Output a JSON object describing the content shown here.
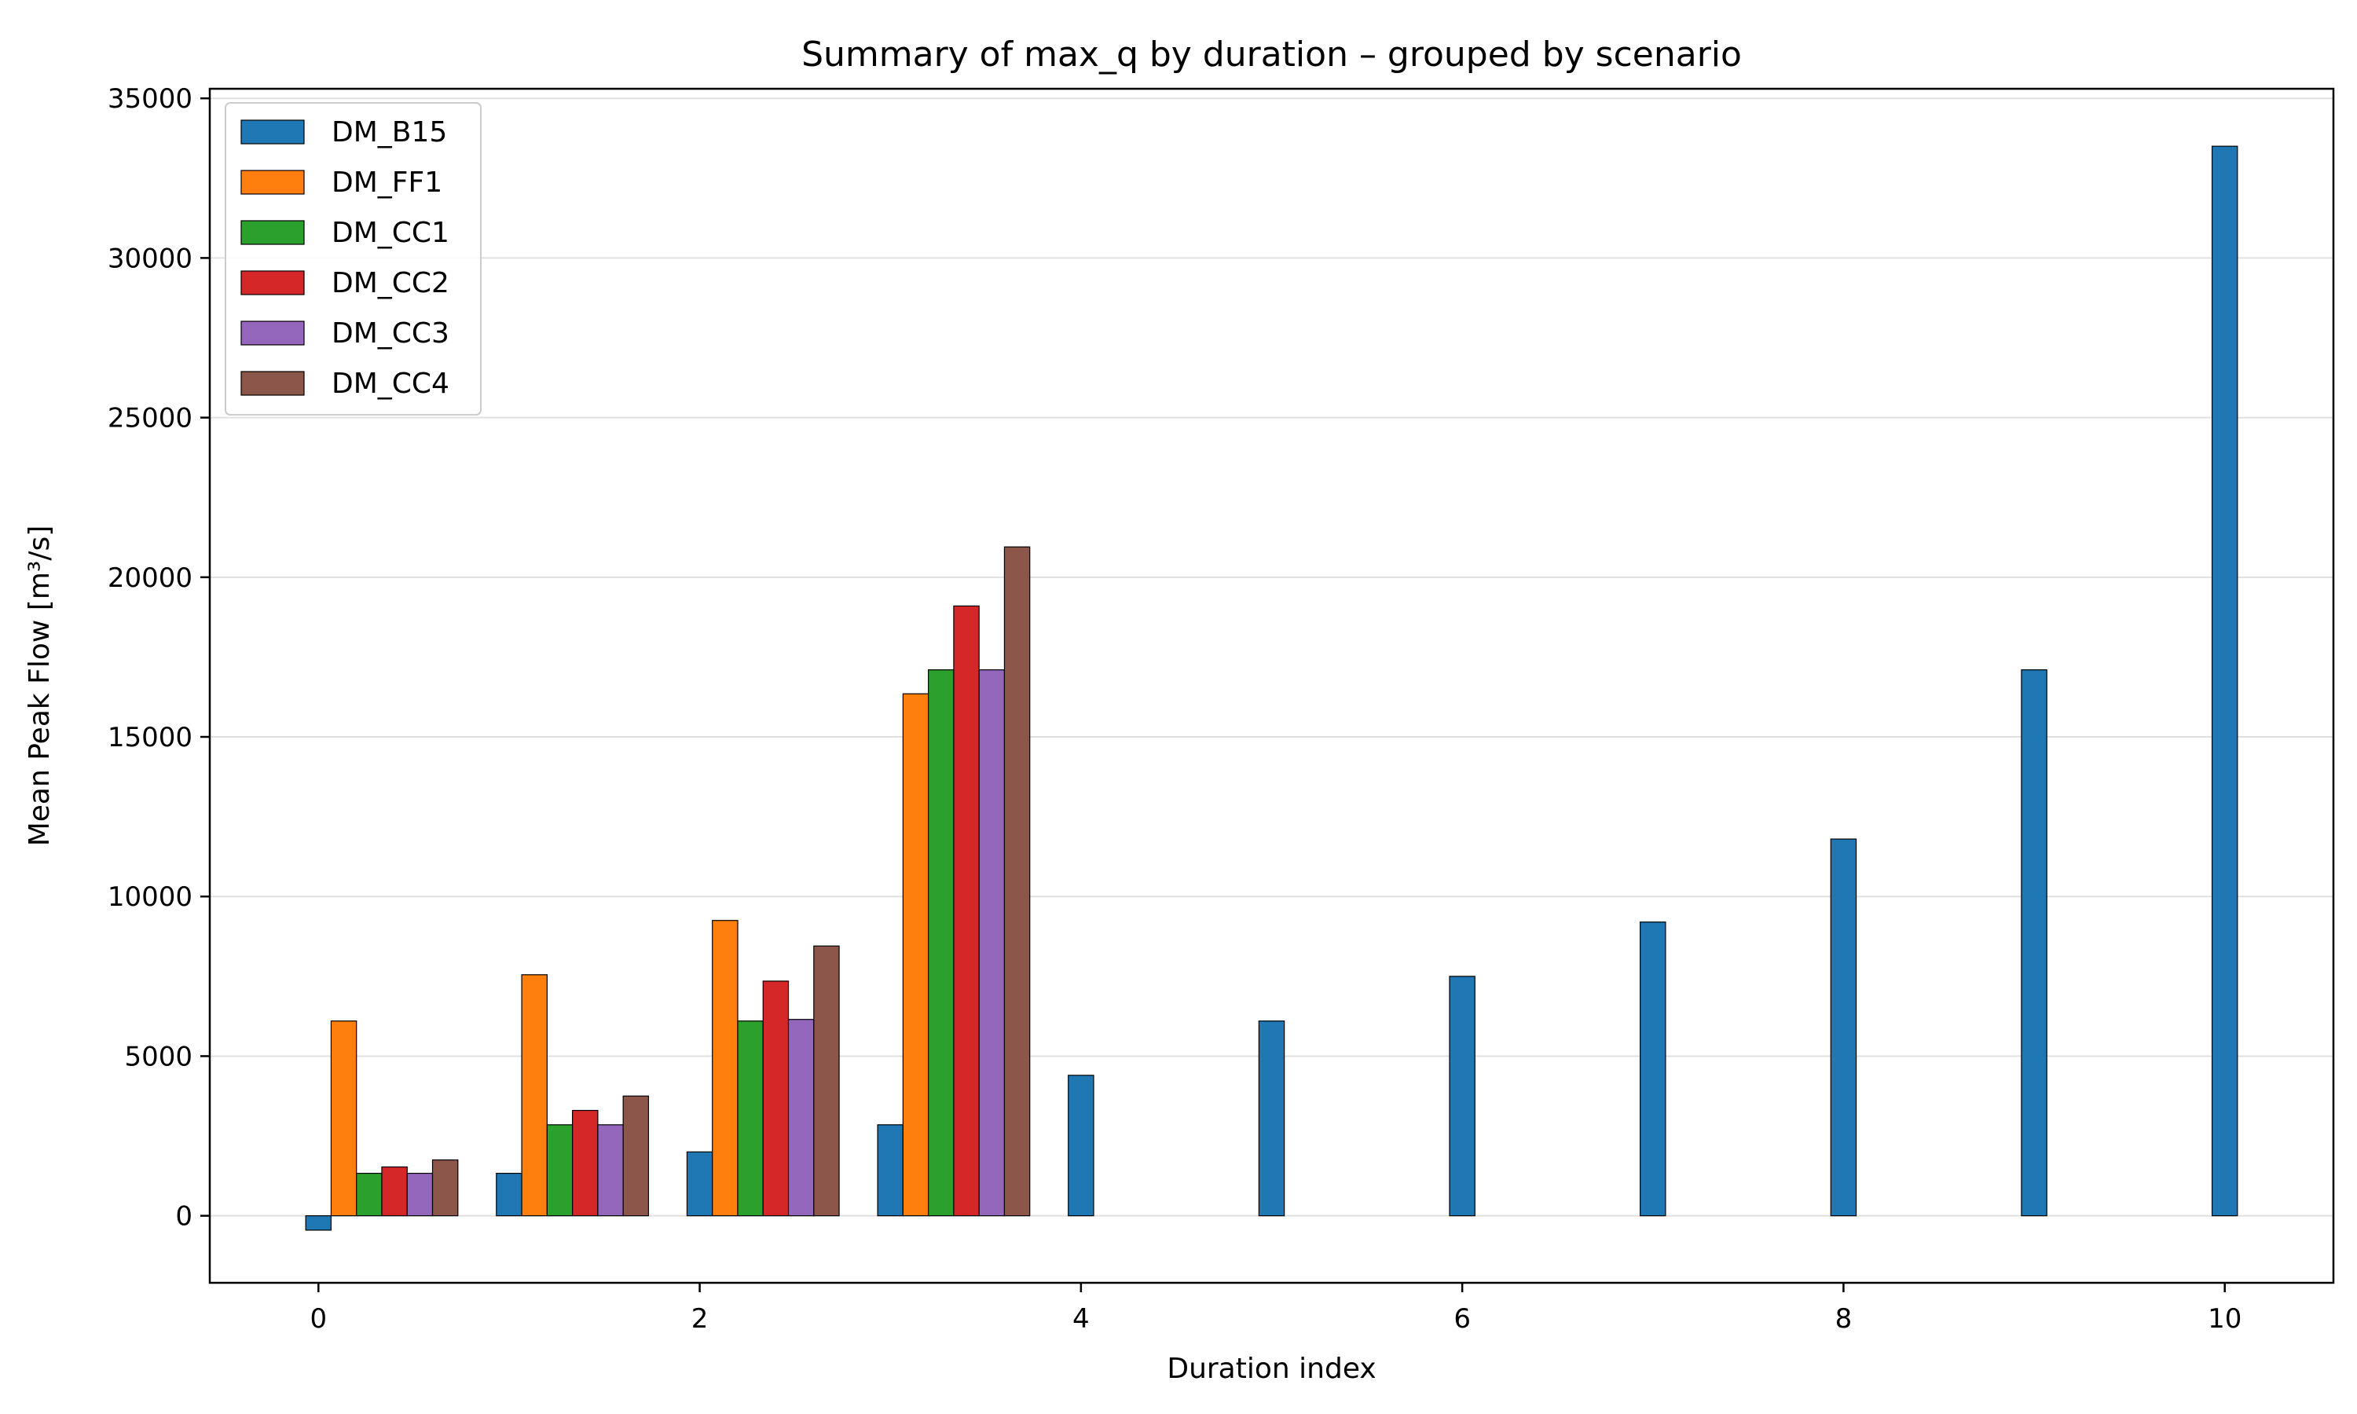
{
  "chart_data": {
    "type": "bar",
    "title": "Summary of max_q by duration – grouped by scenario",
    "xlabel": "Duration index",
    "ylabel": "Mean Peak Flow [m³/s]",
    "xlim": [
      -0.57,
      10.57
    ],
    "ylim": [
      -2100,
      35300
    ],
    "xticks": [
      0,
      2,
      4,
      6,
      8,
      10
    ],
    "yticks": [
      0,
      5000,
      10000,
      15000,
      20000,
      25000,
      30000,
      35000
    ],
    "grid": "y",
    "legend_position": "top-left",
    "bar_width": 0.133,
    "series": [
      {
        "name": "DM_B15",
        "color": "#1f77b4",
        "x": [
          0,
          1,
          2,
          3,
          4,
          5,
          6,
          7,
          8,
          9,
          10
        ],
        "values": [
          -450,
          1330,
          2000,
          2850,
          4400,
          6100,
          7500,
          9200,
          11800,
          17100,
          33500
        ]
      },
      {
        "name": "DM_FF1",
        "color": "#ff7f0e",
        "x": [
          0,
          1,
          2,
          3
        ],
        "values": [
          6100,
          7550,
          9250,
          16350
        ]
      },
      {
        "name": "DM_CC1",
        "color": "#2ca02c",
        "x": [
          0,
          1,
          2,
          3
        ],
        "values": [
          1330,
          2850,
          6100,
          17100
        ]
      },
      {
        "name": "DM_CC2",
        "color": "#d62728",
        "x": [
          0,
          1,
          2,
          3
        ],
        "values": [
          1530,
          3300,
          7350,
          19100
        ]
      },
      {
        "name": "DM_CC3",
        "color": "#9467bd",
        "x": [
          0,
          1,
          2,
          3
        ],
        "values": [
          1330,
          2850,
          6150,
          17100
        ]
      },
      {
        "name": "DM_CC4",
        "color": "#8c564b",
        "x": [
          0,
          1,
          2,
          3
        ],
        "values": [
          1750,
          3750,
          8450,
          20950
        ]
      }
    ]
  }
}
